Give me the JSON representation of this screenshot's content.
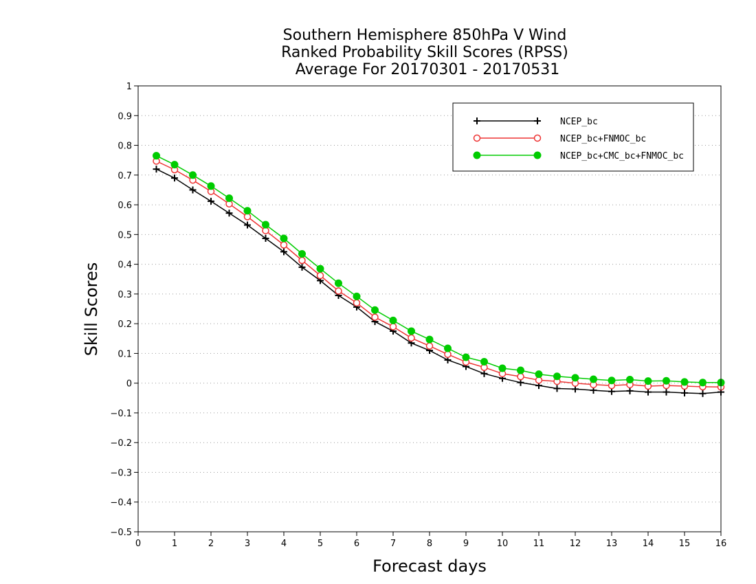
{
  "chart_data": {
    "type": "line",
    "title": [
      "Southern Hemisphere 850hPa V Wind",
      "Ranked Probability Skill Scores (RPSS)",
      "Average For 20170301 - 20170531"
    ],
    "xlabel": "Forecast days",
    "ylabel": "Skill Scores",
    "xlim": [
      0,
      16
    ],
    "ylim": [
      -0.5,
      1
    ],
    "xticks": [
      0,
      1,
      2,
      3,
      4,
      5,
      6,
      7,
      8,
      9,
      10,
      11,
      12,
      13,
      14,
      15,
      16
    ],
    "yticks": [
      -0.5,
      -0.4,
      -0.3,
      -0.2,
      -0.1,
      0,
      0.1,
      0.2,
      0.3,
      0.4,
      0.5,
      0.6,
      0.7,
      0.8,
      0.9,
      1
    ],
    "ytick_labels": [
      "−0.5",
      "−0.4",
      "−0.3",
      "−0.2",
      "−0.1",
      "0",
      "0.1",
      "0.2",
      "0.3",
      "0.4",
      "0.5",
      "0.6",
      "0.7",
      "0.8",
      "0.9",
      "1"
    ],
    "grid": "horizontal-dotted",
    "legend_position": "top-right",
    "x": [
      0.5,
      1,
      1.5,
      2,
      2.5,
      3,
      3.5,
      4,
      4.5,
      5,
      5.5,
      6,
      6.5,
      7,
      7.5,
      8,
      8.5,
      9,
      9.5,
      10,
      10.5,
      11,
      11.5,
      12,
      12.5,
      13,
      13.5,
      14,
      14.5,
      15,
      15.5,
      16
    ],
    "series": [
      {
        "name": "NCEP_bc",
        "color": "#000000",
        "marker": "plus",
        "values": [
          0.72,
          0.69,
          0.65,
          0.612,
          0.572,
          0.532,
          0.487,
          0.442,
          0.39,
          0.345,
          0.295,
          0.256,
          0.207,
          0.175,
          0.135,
          0.11,
          0.078,
          0.056,
          0.032,
          0.016,
          0.002,
          -0.008,
          -0.018,
          -0.02,
          -0.024,
          -0.028,
          -0.026,
          -0.03,
          -0.03,
          -0.033,
          -0.035,
          -0.03
        ]
      },
      {
        "name": "NCEP_bc+FNMOC_bc",
        "color": "#ee3333",
        "marker": "open-circle",
        "values": [
          0.747,
          0.718,
          0.683,
          0.645,
          0.603,
          0.56,
          0.513,
          0.465,
          0.413,
          0.362,
          0.31,
          0.27,
          0.222,
          0.19,
          0.152,
          0.125,
          0.097,
          0.071,
          0.053,
          0.032,
          0.022,
          0.01,
          0.006,
          0.0,
          -0.005,
          -0.008,
          -0.005,
          -0.01,
          -0.008,
          -0.01,
          -0.012,
          -0.013
        ]
      },
      {
        "name": "NCEP_bc+CMC_bc+FNMOC_bc",
        "color": "#00cc00",
        "marker": "filled-circle",
        "values": [
          0.765,
          0.735,
          0.7,
          0.663,
          0.622,
          0.58,
          0.533,
          0.487,
          0.435,
          0.385,
          0.336,
          0.292,
          0.246,
          0.211,
          0.175,
          0.147,
          0.117,
          0.087,
          0.072,
          0.05,
          0.043,
          0.03,
          0.023,
          0.018,
          0.013,
          0.009,
          0.012,
          0.007,
          0.008,
          0.004,
          0.002,
          0.002
        ]
      }
    ]
  }
}
